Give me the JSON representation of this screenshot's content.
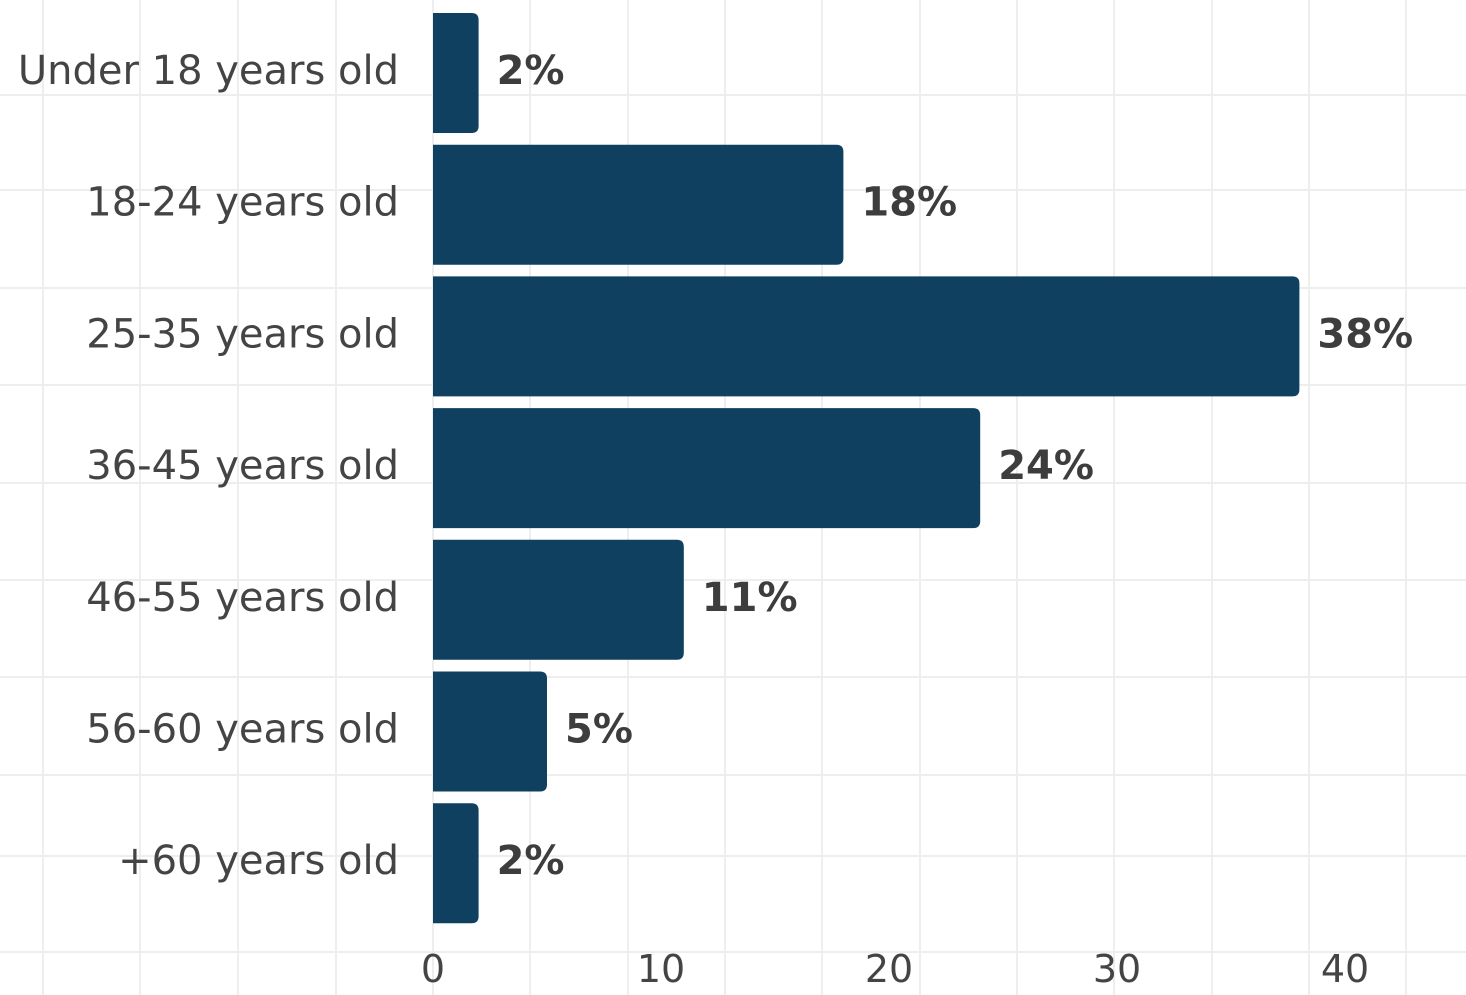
{
  "chart_data": {
    "type": "bar",
    "orientation": "horizontal",
    "categories": [
      "Under 18 years old",
      "18-24 years old",
      "25-35 years old",
      "36-45 years old",
      "46-55 years old",
      "56-60 years old",
      "+60 years old"
    ],
    "values": [
      2,
      18,
      38,
      24,
      11,
      5,
      2
    ],
    "value_labels": [
      "2%",
      "18%",
      "38%",
      "24%",
      "11%",
      "5%",
      "2%"
    ],
    "xticks": [
      "0",
      "10",
      "20",
      "30",
      "40"
    ],
    "xlim": [
      0,
      45
    ],
    "title": "",
    "xlabel": "",
    "ylabel": "",
    "grid": true,
    "colors": {
      "bar": "#0f4060",
      "grid": "#eeeeee"
    }
  }
}
